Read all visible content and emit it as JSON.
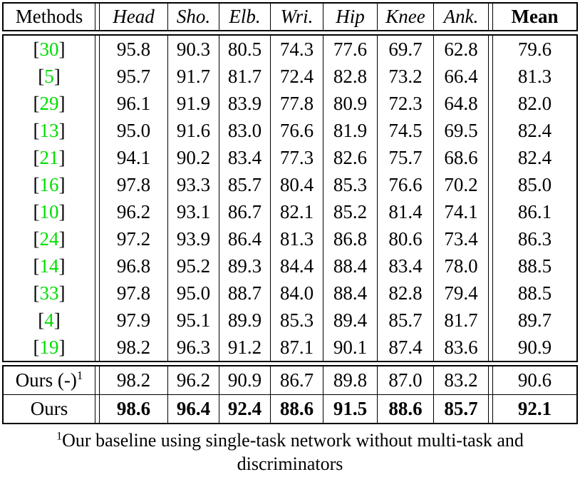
{
  "table": {
    "bracket_open": "[",
    "bracket_close": "]",
    "header": {
      "methods": "Methods",
      "joints": [
        "Head",
        "Sho.",
        "Elb.",
        "Wri.",
        "Hip",
        "Knee",
        "Ank."
      ],
      "mean": "Mean"
    },
    "rows": [
      {
        "ref": "30",
        "values": [
          "95.8",
          "90.3",
          "80.5",
          "74.3",
          "77.6",
          "69.7",
          "62.8"
        ],
        "mean": "79.6"
      },
      {
        "ref": "5",
        "values": [
          "95.7",
          "91.7",
          "81.7",
          "72.4",
          "82.8",
          "73.2",
          "66.4"
        ],
        "mean": "81.3"
      },
      {
        "ref": "29",
        "values": [
          "96.1",
          "91.9",
          "83.9",
          "77.8",
          "80.9",
          "72.3",
          "64.8"
        ],
        "mean": "82.0"
      },
      {
        "ref": "13",
        "values": [
          "95.0",
          "91.6",
          "83.0",
          "76.6",
          "81.9",
          "74.5",
          "69.5"
        ],
        "mean": "82.4"
      },
      {
        "ref": "21",
        "values": [
          "94.1",
          "90.2",
          "83.4",
          "77.3",
          "82.6",
          "75.7",
          "68.6"
        ],
        "mean": "82.4"
      },
      {
        "ref": "16",
        "values": [
          "97.8",
          "93.3",
          "85.7",
          "80.4",
          "85.3",
          "76.6",
          "70.2"
        ],
        "mean": "85.0"
      },
      {
        "ref": "10",
        "values": [
          "96.2",
          "93.1",
          "86.7",
          "82.1",
          "85.2",
          "81.4",
          "74.1"
        ],
        "mean": "86.1"
      },
      {
        "ref": "24",
        "values": [
          "97.2",
          "93.9",
          "86.4",
          "81.3",
          "86.8",
          "80.6",
          "73.4"
        ],
        "mean": "86.3"
      },
      {
        "ref": "14",
        "values": [
          "96.8",
          "95.2",
          "89.3",
          "84.4",
          "88.4",
          "83.4",
          "78.0"
        ],
        "mean": "88.5"
      },
      {
        "ref": "33",
        "values": [
          "97.8",
          "95.0",
          "88.7",
          "84.0",
          "88.4",
          "82.8",
          "79.4"
        ],
        "mean": "88.5"
      },
      {
        "ref": "4",
        "values": [
          "97.9",
          "95.1",
          "89.9",
          "85.3",
          "89.4",
          "85.7",
          "81.7"
        ],
        "mean": "89.7"
      },
      {
        "ref": "19",
        "values": [
          "98.2",
          "96.3",
          "91.2",
          "87.1",
          "90.1",
          "87.4",
          "83.6"
        ],
        "mean": "90.9"
      }
    ],
    "ours_rows": [
      {
        "label": "Ours (-)",
        "superscript": "1",
        "values": [
          "98.2",
          "96.2",
          "90.9",
          "86.7",
          "89.8",
          "87.0",
          "83.2"
        ],
        "mean": "90.6",
        "bold": false
      },
      {
        "label": "Ours",
        "superscript": "",
        "values": [
          "98.6",
          "96.4",
          "92.4",
          "88.6",
          "91.5",
          "88.6",
          "85.7"
        ],
        "mean": "92.1",
        "bold": true
      }
    ]
  },
  "footnote": {
    "marker": "1",
    "text": "Our baseline using single-task network without multi-task and discriminators"
  },
  "colors": {
    "citation_green": "#00dd00",
    "text_black": "#000000"
  }
}
